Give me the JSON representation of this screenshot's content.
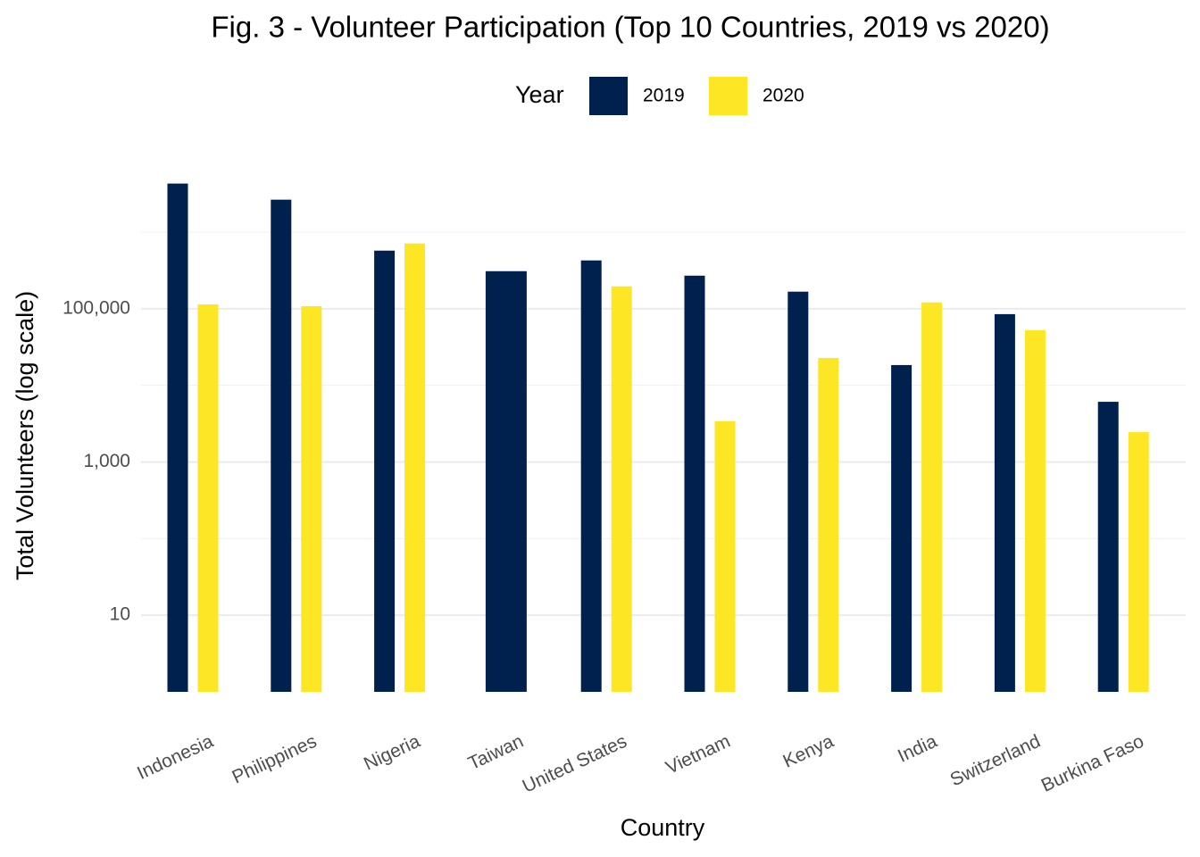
{
  "chart_data": {
    "type": "bar",
    "title": "Fig. 3 - Volunteer Participation (Top 10 Countries, 2019 vs 2020)",
    "x_label": "Country",
    "y_label": "Total Volunteers (log scale)",
    "legend_title": "Year",
    "categories": [
      "Indonesia",
      "Philippines",
      "Nigeria",
      "Taiwan",
      "United States",
      "Vietnam",
      "Kenya",
      "India",
      "Switzerland",
      "Burkina Faso"
    ],
    "series": [
      {
        "name": "2019",
        "color": "#00204d",
        "values": [
          4300000,
          2650000,
          573000,
          309000,
          427000,
          270000,
          167000,
          18400,
          85000,
          6100
        ]
      },
      {
        "name": "2020",
        "color": "#fde725",
        "values": [
          114000,
          108000,
          711000,
          null,
          196000,
          3400,
          22800,
          121000,
          52500,
          2450
        ]
      }
    ],
    "ylim": [
      1,
      5000000
    ],
    "yticks": [
      10,
      {
        "value": 1000,
        "label": "1,000"
      },
      {
        "value": 100000,
        "label": "100,000"
      }
    ],
    "log_y": true,
    "grid": true,
    "legend_position": "top"
  }
}
